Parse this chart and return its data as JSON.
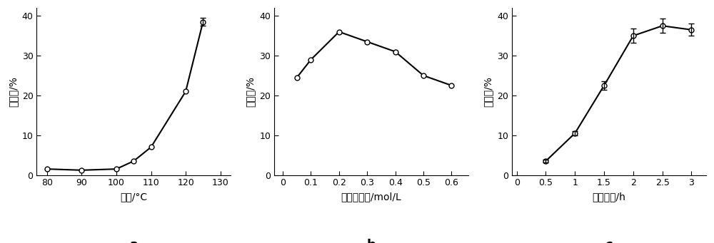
{
  "plot_a": {
    "x": [
      80,
      90,
      100,
      105,
      110,
      120,
      125
    ],
    "y": [
      1.5,
      1.2,
      1.5,
      3.5,
      7.0,
      21.0,
      38.5
    ],
    "yerr": [
      0.3,
      0.2,
      0.2,
      0.3,
      0.4,
      0.5,
      1.0
    ],
    "has_err": [
      false,
      false,
      false,
      false,
      false,
      false,
      true
    ],
    "xlabel": "温度/°C",
    "ylabel": "降解率/%",
    "xticks": [
      80,
      90,
      100,
      110,
      120,
      130
    ],
    "yticks": [
      0,
      10,
      20,
      30,
      40
    ],
    "xlim": [
      77,
      133
    ],
    "ylim": [
      0,
      42
    ],
    "label": "a"
  },
  "plot_b": {
    "x": [
      0.05,
      0.1,
      0.2,
      0.3,
      0.4,
      0.5,
      0.6
    ],
    "y": [
      24.5,
      29.0,
      36.0,
      33.5,
      31.0,
      25.0,
      22.5
    ],
    "yerr": [
      0.5,
      0.5,
      0.5,
      0.5,
      0.5,
      0.5,
      0.5
    ],
    "has_err": [
      false,
      false,
      false,
      false,
      false,
      false,
      false
    ],
    "xlabel": "双氧水浓度/mol/L",
    "ylabel": "降解率/%",
    "xticks": [
      0,
      0.1,
      0.2,
      0.3,
      0.4,
      0.5,
      0.6
    ],
    "yticks": [
      0,
      10,
      20,
      30,
      40
    ],
    "xlim": [
      -0.03,
      0.66
    ],
    "ylim": [
      0,
      42
    ],
    "label": "b"
  },
  "plot_c": {
    "x": [
      0.5,
      1.0,
      1.5,
      2.0,
      2.5,
      3.0
    ],
    "y": [
      3.5,
      10.5,
      22.5,
      35.0,
      37.5,
      36.5
    ],
    "yerr": [
      0.4,
      0.6,
      1.0,
      1.8,
      1.8,
      1.5
    ],
    "has_err": [
      true,
      true,
      true,
      true,
      true,
      true
    ],
    "xlabel": "反应时间/h",
    "ylabel": "降解率/%",
    "xticks": [
      0,
      0.5,
      1,
      1.5,
      2,
      2.5,
      3
    ],
    "yticks": [
      0,
      10,
      20,
      30,
      40
    ],
    "xlim": [
      -0.08,
      3.25
    ],
    "ylim": [
      0,
      42
    ],
    "label": "c"
  },
  "line_color": "#000000",
  "marker_facecolor": "#ffffff",
  "marker_edgecolor": "#000000",
  "marker": "o",
  "markersize": 5,
  "linewidth": 1.5,
  "fontsize_label": 10,
  "fontsize_tick": 9,
  "fontsize_sublabel": 13
}
